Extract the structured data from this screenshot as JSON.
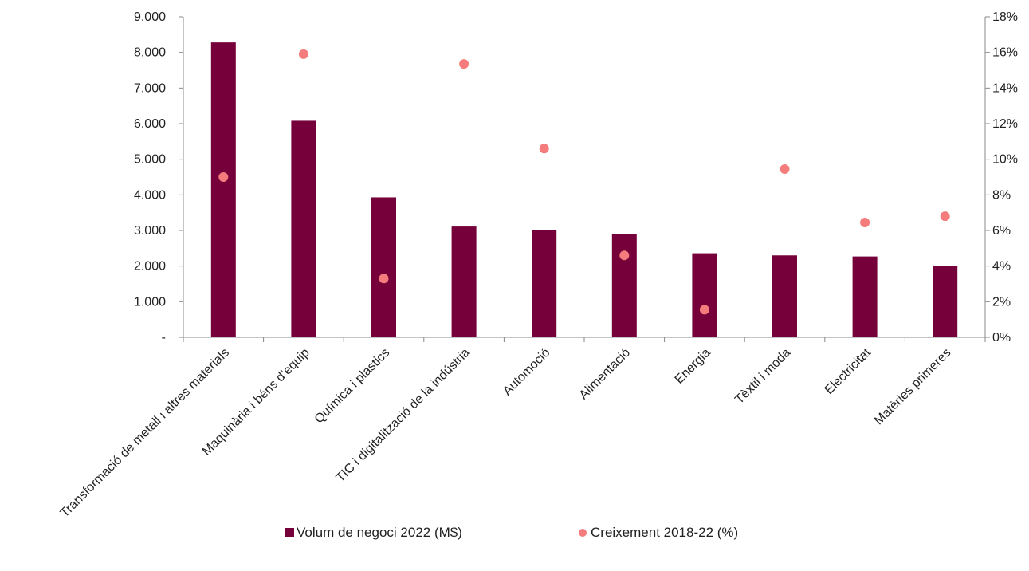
{
  "chart_data": {
    "type": "bar",
    "categories": [
      "Transformació de metall i altres materials",
      "Maquinària i béns d’equip",
      "Química i plàstics",
      "TIC i digitalització de la indústria",
      "Automoció",
      "Alimentació",
      "Energia",
      "Tèxtil i moda",
      "Electricitat",
      "Matèries primeres"
    ],
    "series": [
      {
        "name": "Volum de negoci 2022 (M$)",
        "type": "bar",
        "axis": "left",
        "color": "#76003A",
        "values": [
          8280,
          6080,
          3930,
          3110,
          3000,
          2890,
          2360,
          2300,
          2270,
          2000
        ]
      },
      {
        "name": "Creixement 2018-22 (%)",
        "type": "scatter",
        "axis": "right",
        "color": "#F47C7C",
        "values": [
          9.0,
          15.9,
          3.3,
          15.35,
          10.6,
          4.6,
          1.55,
          9.45,
          6.45,
          6.8
        ]
      }
    ],
    "left_axis": {
      "ylim": [
        0,
        9000
      ],
      "ticks": [
        0,
        1000,
        2000,
        3000,
        4000,
        5000,
        6000,
        7000,
        8000,
        9000
      ],
      "tick_labels": [
        "-",
        "1.000",
        "2.000",
        "3.000",
        "4.000",
        "5.000",
        "6.000",
        "7.000",
        "8.000",
        "9.000"
      ]
    },
    "right_axis": {
      "ylim": [
        0,
        18
      ],
      "ticks": [
        0,
        2,
        4,
        6,
        8,
        10,
        12,
        14,
        16,
        18
      ],
      "tick_labels": [
        "0%",
        "2%",
        "4%",
        "6%",
        "8%",
        "10%",
        "12%",
        "14%",
        "16%",
        "18%"
      ]
    },
    "title": "",
    "xlabel": "",
    "ylabel": "",
    "grid": false,
    "legend_position": "bottom"
  }
}
